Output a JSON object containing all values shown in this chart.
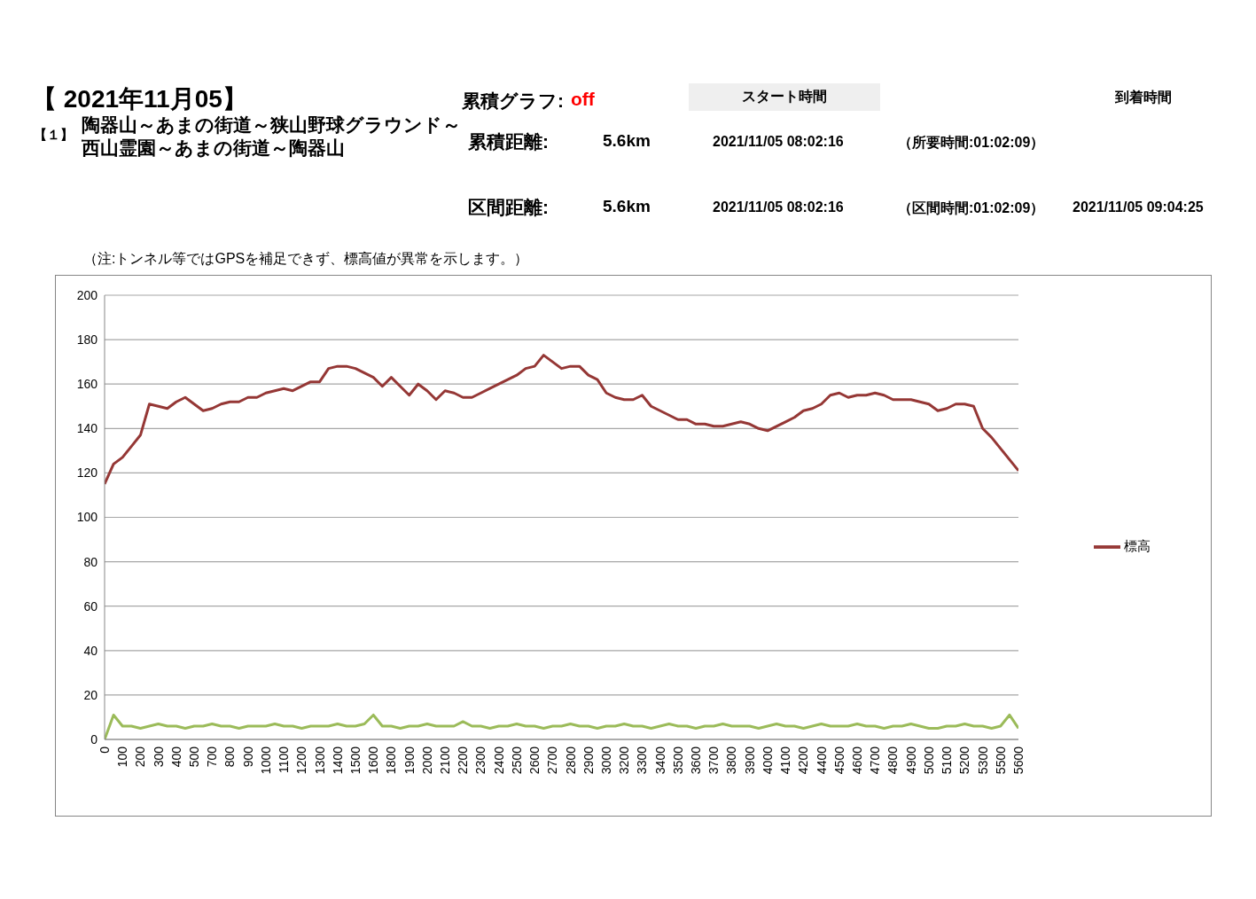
{
  "chart_data": {
    "type": "line",
    "title": "【 2021年11月05】",
    "subtitle": "陶器山～あまの街道～狭山野球グラウンド～西山霊園～あまの街道～陶器山",
    "annotations": [
      "【１】",
      "累積グラフ:",
      "off",
      "スタート時間",
      "到着時間",
      "累積距離:",
      "5.6km",
      "2021/11/05 08:02:16",
      "（所要時間:01:02:09）",
      "区間距離:",
      "5.6km",
      "2021/11/05 08:02:16",
      "（区間時間:01:02:09）",
      "2021/11/05 09:04:25",
      "（注:トンネル等ではGPSを補足できず、標高値が異常を示します。）"
    ],
    "categories": [
      "0",
      null,
      "100",
      null,
      "200",
      null,
      "300",
      null,
      "400",
      null,
      "500",
      null,
      "700",
      null,
      "800",
      null,
      "900",
      null,
      "1000",
      null,
      "1100",
      null,
      "1200",
      null,
      "1300",
      null,
      "1400",
      null,
      "1500",
      null,
      "1600",
      null,
      "1800",
      null,
      "1900",
      null,
      "2000",
      null,
      "2100",
      null,
      "2200",
      null,
      "2300",
      null,
      "2400",
      null,
      "2500",
      null,
      "2600",
      null,
      "2700",
      null,
      "2800",
      null,
      "2900",
      null,
      "3000",
      null,
      "3200",
      null,
      "3300",
      null,
      "3400",
      null,
      "3500",
      null,
      "3600",
      null,
      "3700",
      null,
      "3800",
      null,
      "3900",
      null,
      "4000",
      null,
      "4100",
      null,
      "4200",
      null,
      "4400",
      null,
      "4500",
      null,
      "4600",
      null,
      "4700",
      null,
      "4800",
      null,
      "4900",
      null,
      "5000",
      null,
      "5100",
      null,
      "5200",
      null,
      "5300",
      null,
      "5500",
      null,
      "5600"
    ],
    "series": [
      {
        "name": "標高",
        "color": "#953735",
        "values": [
          115,
          124,
          127,
          132,
          137,
          151,
          150,
          149,
          152,
          154,
          151,
          148,
          149,
          151,
          152,
          152,
          154,
          154,
          156,
          157,
          158,
          157,
          159,
          161,
          161,
          167,
          168,
          168,
          167,
          165,
          163,
          159,
          163,
          159,
          155,
          160,
          157,
          153,
          157,
          156,
          154,
          154,
          156,
          158,
          160,
          162,
          164,
          167,
          168,
          173,
          170,
          167,
          168,
          168,
          164,
          162,
          156,
          154,
          153,
          153,
          155,
          150,
          148,
          146,
          144,
          144,
          142,
          142,
          141,
          141,
          142,
          143,
          142,
          140,
          139,
          141,
          143,
          145,
          148,
          149,
          151,
          155,
          156,
          154,
          155,
          155,
          156,
          155,
          153,
          153,
          153,
          152,
          151,
          148,
          149,
          151,
          151,
          150,
          140,
          136,
          131,
          126,
          121
        ]
      },
      {
        "color": "#9bbb59",
        "values": [
          0,
          11,
          6,
          6,
          5,
          6,
          7,
          6,
          6,
          5,
          6,
          6,
          7,
          6,
          6,
          5,
          6,
          6,
          6,
          7,
          6,
          6,
          5,
          6,
          6,
          6,
          7,
          6,
          6,
          7,
          11,
          6,
          6,
          5,
          6,
          6,
          7,
          6,
          6,
          6,
          8,
          6,
          6,
          5,
          6,
          6,
          7,
          6,
          6,
          5,
          6,
          6,
          7,
          6,
          6,
          5,
          6,
          6,
          7,
          6,
          6,
          5,
          6,
          7,
          6,
          6,
          5,
          6,
          6,
          7,
          6,
          6,
          6,
          5,
          6,
          7,
          6,
          6,
          5,
          6,
          7,
          6,
          6,
          6,
          7,
          6,
          6,
          5,
          6,
          6,
          7,
          6,
          5,
          5,
          6,
          6,
          7,
          6,
          6,
          5,
          6,
          11,
          5
        ]
      }
    ],
    "ylim": [
      0,
      200
    ],
    "yticks": [
      0,
      20,
      40,
      60,
      80,
      100,
      120,
      140,
      160,
      180,
      200
    ],
    "grid": "y",
    "legend": "right",
    "marker": "none",
    "line_style": "solid"
  }
}
